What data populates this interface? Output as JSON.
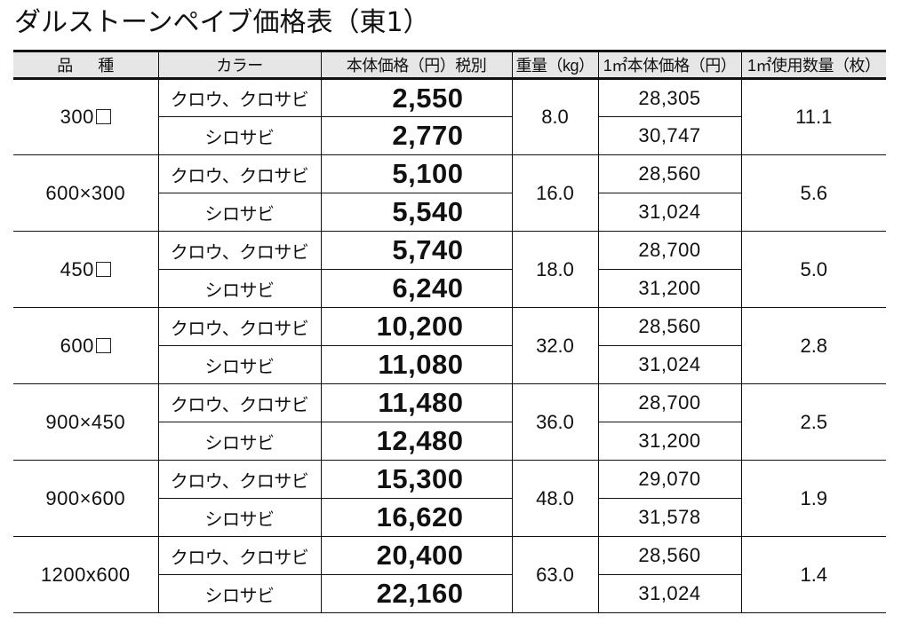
{
  "title": "ダルストーンペイブ価格表（東1）",
  "header": {
    "col_size": "品種",
    "col_color": "カラー",
    "col_price": "本体価格（円）税別",
    "col_weight": "重量（kg）",
    "col_unit_price": "1㎡本体価格（円）",
    "col_qty": "1㎡使用数量（枚）"
  },
  "rows": [
    {
      "size": "300",
      "size_suffix_square": true,
      "weight": "8.0",
      "qty": "11.1",
      "variants": [
        {
          "color": "クロウ、クロサビ",
          "price": "2,550",
          "unit_price": "28,305"
        },
        {
          "color": "シロサビ",
          "price": "2,770",
          "unit_price": "30,747"
        }
      ]
    },
    {
      "size": "600×300",
      "size_suffix_square": false,
      "weight": "16.0",
      "qty": "5.6",
      "variants": [
        {
          "color": "クロウ、クロサビ",
          "price": "5,100",
          "unit_price": "28,560"
        },
        {
          "color": "シロサビ",
          "price": "5,540",
          "unit_price": "31,024"
        }
      ]
    },
    {
      "size": "450",
      "size_suffix_square": true,
      "weight": "18.0",
      "qty": "5.0",
      "variants": [
        {
          "color": "クロウ、クロサビ",
          "price": "5,740",
          "unit_price": "28,700"
        },
        {
          "color": "シロサビ",
          "price": "6,240",
          "unit_price": "31,200"
        }
      ]
    },
    {
      "size": "600",
      "size_suffix_square": true,
      "weight": "32.0",
      "qty": "2.8",
      "variants": [
        {
          "color": "クロウ、クロサビ",
          "price": "10,200",
          "unit_price": "28,560"
        },
        {
          "color": "シロサビ",
          "price": "11,080",
          "unit_price": "31,024"
        }
      ]
    },
    {
      "size": "900×450",
      "size_suffix_square": false,
      "weight": "36.0",
      "qty": "2.5",
      "variants": [
        {
          "color": "クロウ、クロサビ",
          "price": "11,480",
          "unit_price": "28,700"
        },
        {
          "color": "シロサビ",
          "price": "12,480",
          "unit_price": "31,200"
        }
      ]
    },
    {
      "size": "900×600",
      "size_suffix_square": false,
      "weight": "48.0",
      "qty": "1.9",
      "variants": [
        {
          "color": "クロウ、クロサビ",
          "price": "15,300",
          "unit_price": "29,070"
        },
        {
          "color": "シロサビ",
          "price": "16,620",
          "unit_price": "31,578"
        }
      ]
    },
    {
      "size": "1200x600",
      "size_suffix_square": false,
      "weight": "63.0",
      "qty": "1.4",
      "variants": [
        {
          "color": "クロウ、クロサビ",
          "price": "20,400",
          "unit_price": "28,560"
        },
        {
          "color": "シロサビ",
          "price": "22,160",
          "unit_price": "31,024"
        }
      ]
    }
  ]
}
